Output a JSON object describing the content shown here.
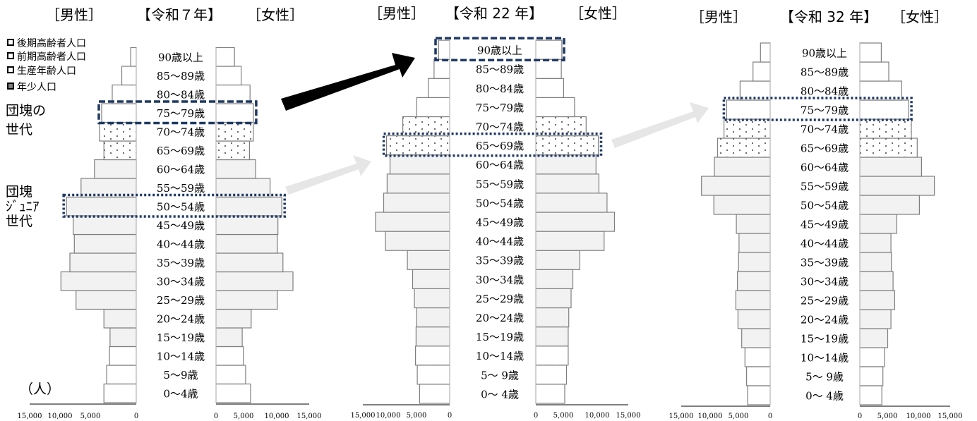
{
  "legend": [
    {
      "label": "後期高齢者人口",
      "swatch": "hollow-square-icon"
    },
    {
      "label": "前期高齢者人口",
      "swatch": "hollow-square-icon"
    },
    {
      "label": "生産年齢人口",
      "swatch": "hollow-square-icon"
    },
    {
      "label": "年少人口",
      "swatch": "filled-square-icon"
    }
  ],
  "colors": {
    "young": "#7f7f7f",
    "working": "#f2f2f2",
    "outline": "#7f7f7f",
    "dotted_fill": "#ffffff",
    "highlight": "#1f3864",
    "black_arrow": "#000000",
    "grey_arrow": "#e6e6e6"
  },
  "annotations": {
    "dankai": "団塊の\n世代",
    "junior": "団塊\nｼﾞｭﾆｱ\n世代"
  },
  "unit_label": "（人）",
  "chart_data": [
    {
      "type": "bar",
      "orientation": "population-pyramid",
      "title": "【令和７年】",
      "male_label": "［男性］",
      "female_label": "［女性］",
      "xlim": [
        0,
        15000
      ],
      "male_ticks": [
        "15,000",
        "10,000",
        "5,000",
        "0"
      ],
      "female_ticks": [
        "0",
        "5,000",
        "10,000",
        "15,000"
      ],
      "categories": [
        "0～4歳",
        "5～9歳",
        "10～14歳",
        "15～19歳",
        "20～24歳",
        "25～29歳",
        "30～34歳",
        "35～39歳",
        "40～44歳",
        "45～49歳",
        "50～54歳",
        "55～59歳",
        "60～64歳",
        "65～69歳",
        "70～74歳",
        "75～79歳",
        "80～84歳",
        "85～89歳",
        "90歳以上"
      ],
      "series": [
        {
          "name": "男性",
          "values": [
            5800,
            5300,
            4800,
            4700,
            5800,
            10800,
            13500,
            11900,
            11100,
            11300,
            12500,
            9900,
            7500,
            5800,
            6600,
            6200,
            4300,
            2600,
            1000
          ]
        },
        {
          "name": "女性",
          "values": [
            6200,
            5300,
            4900,
            4700,
            6300,
            11000,
            13800,
            12000,
            11000,
            11100,
            11800,
            9700,
            7100,
            6000,
            6700,
            6700,
            6100,
            4500,
            3300
          ]
        }
      ],
      "age_group": [
        "young",
        "young",
        "young",
        "working",
        "working",
        "working",
        "working",
        "working",
        "working",
        "working",
        "working",
        "working",
        "working",
        "early",
        "early",
        "late",
        "late",
        "late",
        "late"
      ],
      "highlights": [
        {
          "label": "75～79歳",
          "style": "dashed"
        },
        {
          "label": "50～54歳",
          "style": "dotted"
        }
      ]
    },
    {
      "type": "bar",
      "orientation": "population-pyramid",
      "title": "【令和 22 年】",
      "male_label": "［男性］",
      "female_label": "［女性］",
      "xlim": [
        0,
        15000
      ],
      "male_ticks": [
        "15,000",
        "10,000",
        "5,000",
        "0"
      ],
      "female_ticks": [
        "0",
        "5,000",
        "10,000",
        "15,000"
      ],
      "categories": [
        "0～ 4歳",
        "5～ 9歳",
        "10～14歳",
        "15～19歳",
        "20～24歳",
        "25～29歳",
        "30～34歳",
        "35～39歳",
        "40～44歳",
        "45～49歳",
        "50～54歳",
        "55～59歳",
        "60～64歳",
        "65～69歳",
        "70～74歳",
        "75～79歳",
        "80～84歳",
        "85～89歳",
        "90歳以上"
      ],
      "series": [
        {
          "name": "男性",
          "values": [
            5200,
            5600,
            5900,
            5800,
            5700,
            6100,
            6400,
            7300,
            11100,
            12800,
            11400,
            10800,
            10300,
            10900,
            8100,
            5700,
            3700,
            2700,
            1900
          ]
        },
        {
          "name": "女性",
          "values": [
            5000,
            5300,
            5600,
            5600,
            5700,
            6100,
            6400,
            7600,
            11800,
            13600,
            12300,
            10900,
            10400,
            10800,
            8700,
            6700,
            4800,
            4400,
            4500
          ]
        }
      ],
      "age_group": [
        "young",
        "young",
        "young",
        "working",
        "working",
        "working",
        "working",
        "working",
        "working",
        "working",
        "working",
        "working",
        "working",
        "early",
        "early",
        "late",
        "late",
        "late",
        "late"
      ],
      "highlights": [
        {
          "label": "90歳以上",
          "style": "dashed"
        },
        {
          "label": "65～69歳",
          "style": "dotted"
        }
      ]
    },
    {
      "type": "bar",
      "orientation": "population-pyramid",
      "title": "【令和 32 年】",
      "male_label": "［男性］",
      "female_label": "［女性］",
      "xlim": [
        0,
        15000
      ],
      "male_ticks": [
        "15,000",
        "10,000",
        "5,000",
        "0"
      ],
      "female_ticks": [
        "0",
        "5,000",
        "10,000",
        "15,000"
      ],
      "categories": [
        "0～ 4歳",
        "5～ 9歳",
        "10～14歳",
        "15～19歳",
        "20～24歳",
        "25～29歳",
        "30～34歳",
        "35～39歳",
        "40～44歳",
        "45～49歳",
        "50～54歳",
        "55～59歳",
        "60～64歳",
        "65～69歳",
        "70～74歳",
        "75～79歳",
        "80～84歳",
        "85～89歳",
        "90歳以上"
      ],
      "series": [
        {
          "name": "男性",
          "values": [
            4200,
            4400,
            4700,
            5300,
            6000,
            6400,
            6100,
            5900,
            5800,
            6300,
            10500,
            12800,
            10400,
            9800,
            8600,
            8100,
            5600,
            3200,
            1800
          ]
        },
        {
          "name": "女性",
          "values": [
            4100,
            4300,
            4600,
            5200,
            5800,
            6500,
            6200,
            5900,
            5800,
            6900,
            11100,
            13900,
            11500,
            10700,
            9600,
            9100,
            7800,
            5400,
            4000
          ]
        }
      ],
      "age_group": [
        "young",
        "young",
        "young",
        "working",
        "working",
        "working",
        "working",
        "working",
        "working",
        "working",
        "working",
        "working",
        "working",
        "early",
        "early",
        "late",
        "late",
        "late",
        "late"
      ],
      "highlights": [
        {
          "label": "75～79歳",
          "style": "dotted"
        }
      ]
    }
  ]
}
